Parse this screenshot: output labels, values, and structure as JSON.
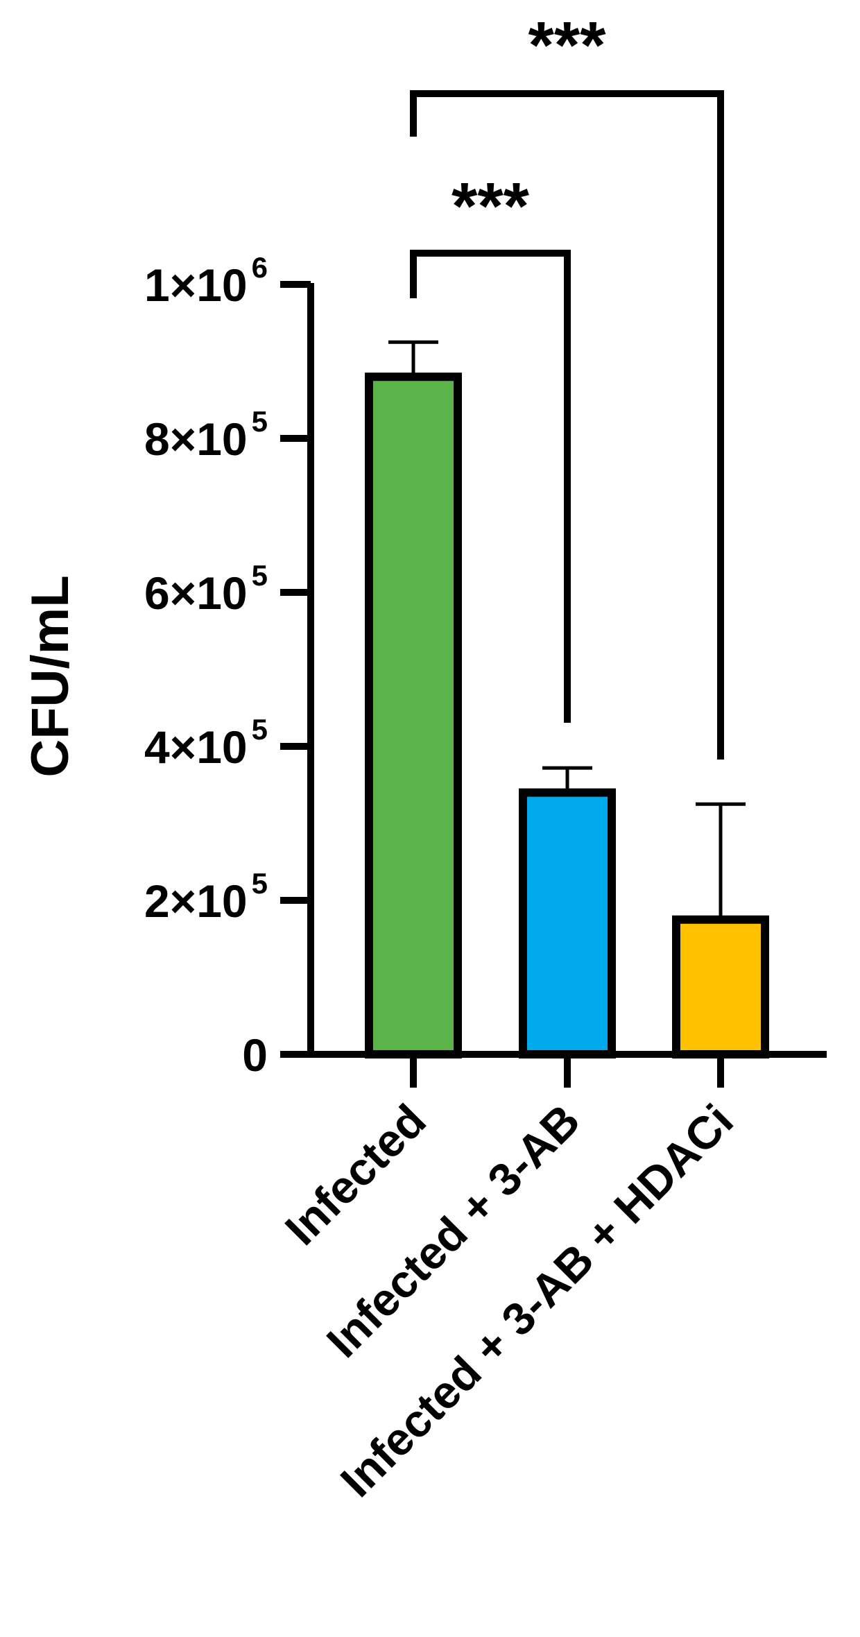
{
  "chart_data": {
    "type": "bar",
    "ylabel": "CFU/mL",
    "ylim": [
      0,
      1000000
    ],
    "yticks": [
      {
        "value": 0,
        "base": "0",
        "exp": ""
      },
      {
        "value": 200000,
        "base": "2×10",
        "exp": "5"
      },
      {
        "value": 400000,
        "base": "4×10",
        "exp": "5"
      },
      {
        "value": 600000,
        "base": "6×10",
        "exp": "5"
      },
      {
        "value": 800000,
        "base": "8×10",
        "exp": "5"
      },
      {
        "value": 1000000,
        "base": "1×10",
        "exp": "6"
      }
    ],
    "categories": [
      "Infected",
      "Infected + 3-AB",
      "Infected + 3-AB + HDACi"
    ],
    "values": [
      880000,
      340000,
      175000
    ],
    "error_upper": [
      925000,
      372000,
      325000
    ],
    "colors": [
      "#5bb44a",
      "#00a8ec",
      "#ffc000"
    ],
    "significance": [
      {
        "from": 0,
        "to": 1,
        "label": "***"
      },
      {
        "from": 0,
        "to": 2,
        "label": "***"
      }
    ],
    "grid": false,
    "legend": "none"
  }
}
